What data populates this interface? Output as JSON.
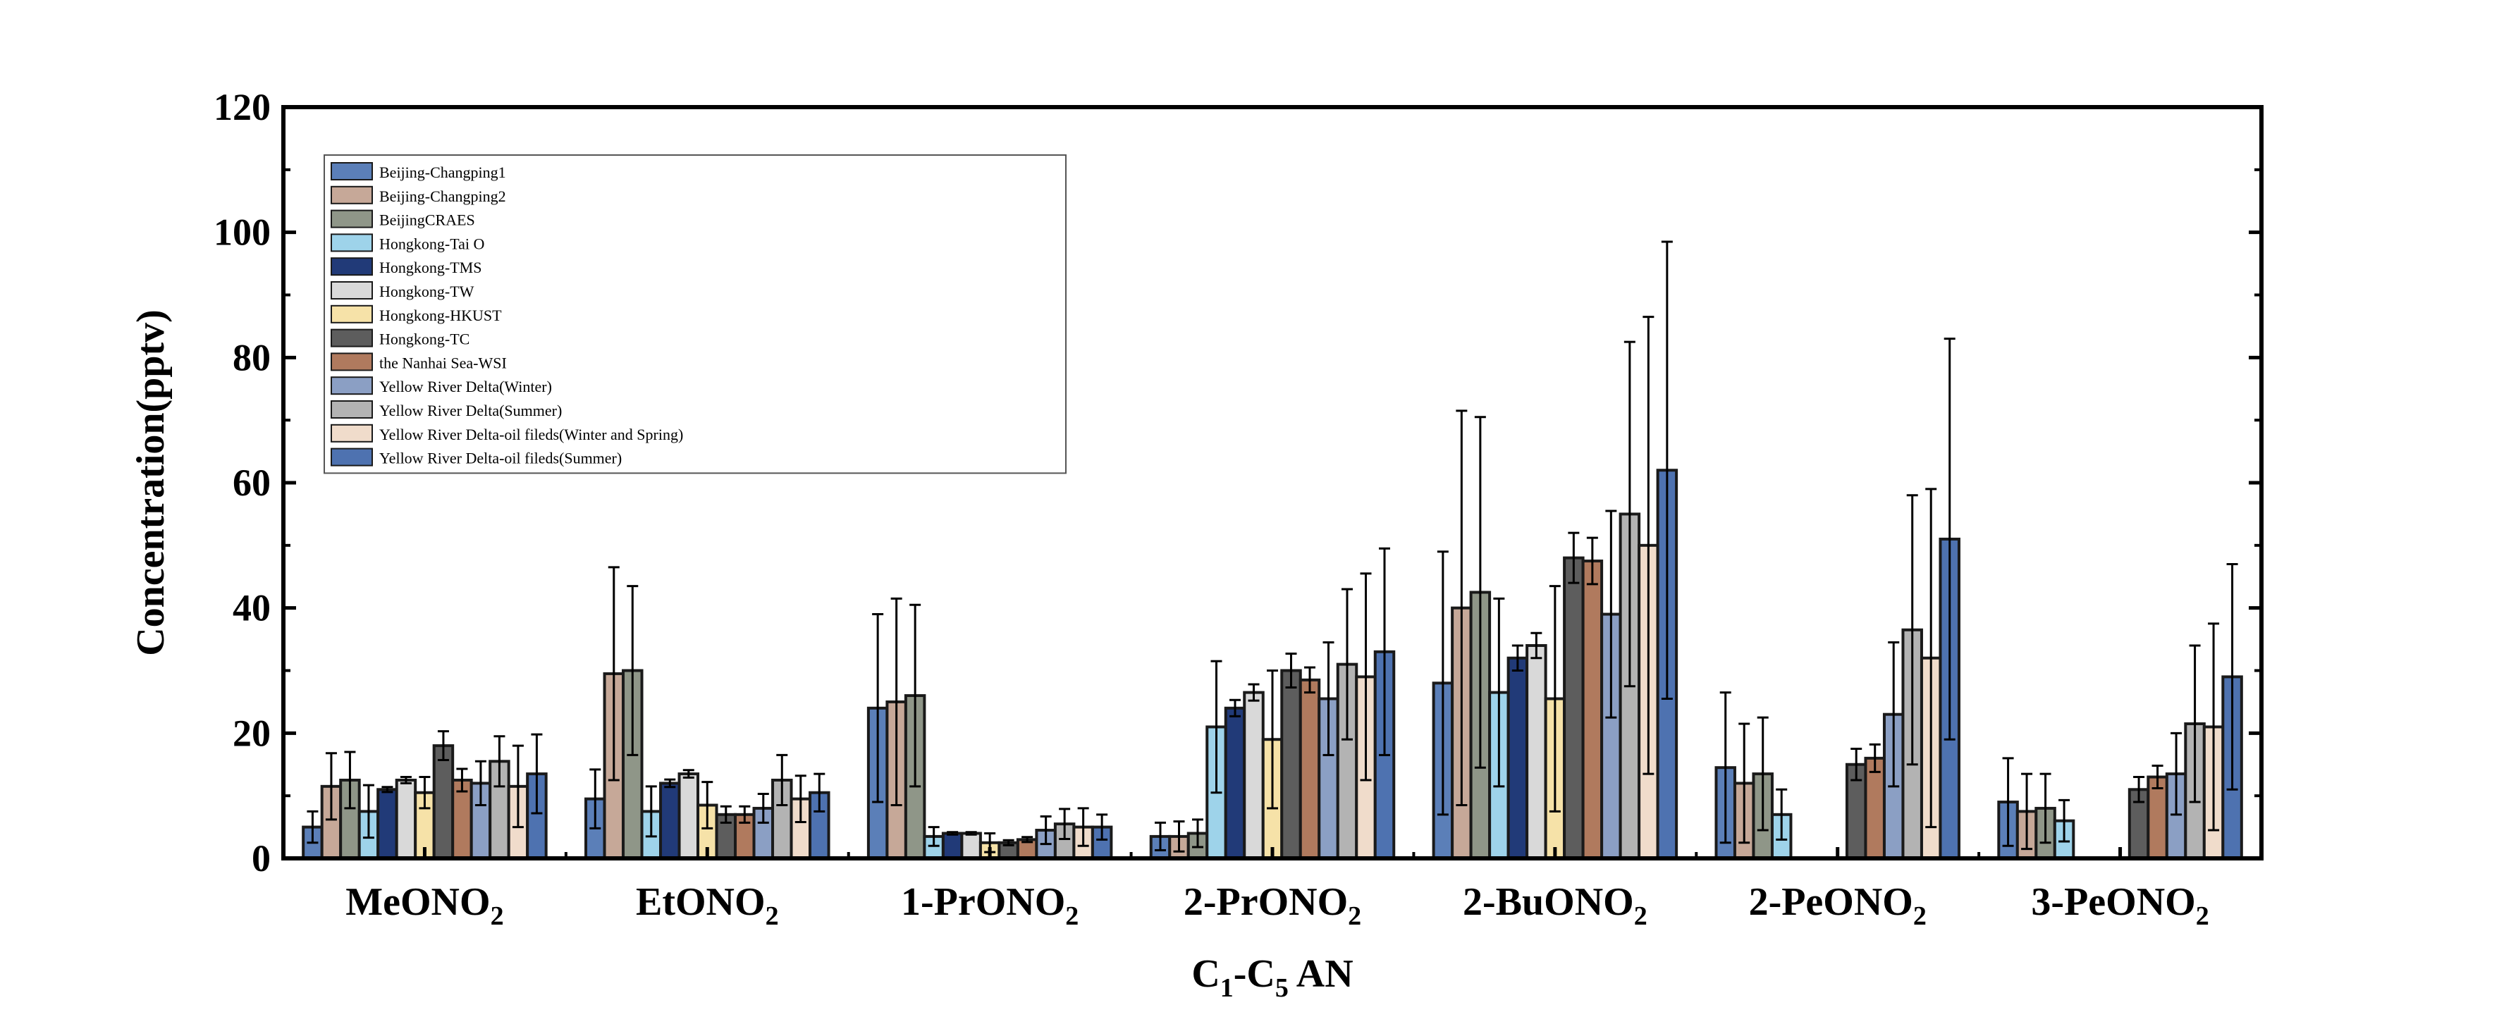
{
  "chart_data": {
    "type": "bar",
    "title": "",
    "ylabel": "Concentration(pptv)",
    "xlabel": {
      "prefix": "C",
      "sub1": "1",
      "mid": "-C",
      "sub2": "5",
      "suffix": " AN"
    },
    "ylim": [
      0,
      120
    ],
    "yticks": [
      0,
      20,
      40,
      60,
      80,
      100,
      120
    ],
    "legend_position": "top-left",
    "categories": [
      {
        "pre": "MeONO",
        "sub": "2"
      },
      {
        "pre": "EtONO",
        "sub": "2"
      },
      {
        "pre": "1-PrONO",
        "sub": "2"
      },
      {
        "pre": "2-PrONO",
        "sub": "2"
      },
      {
        "pre": "2-BuONO",
        "sub": "2"
      },
      {
        "pre": "2-PeONO",
        "sub": "2"
      },
      {
        "pre": "3-PeONO",
        "sub": "2"
      }
    ],
    "series": [
      {
        "name": "Beijing-Changping1",
        "color": "#5b7fb8",
        "values": [
          5,
          9.5,
          24,
          3.5,
          28,
          14.5,
          9
        ],
        "errors": [
          2.5,
          4.7,
          15,
          2.2,
          21,
          12,
          7
        ]
      },
      {
        "name": "Beijing-Changping2",
        "color": "#c6a898",
        "values": [
          11.5,
          29.5,
          25,
          3.5,
          40,
          12,
          7.5
        ],
        "errors": [
          5.3,
          17,
          16.5,
          2.4,
          31.5,
          9.5,
          6
        ]
      },
      {
        "name": "BeijingCRAES",
        "color": "#8f9688",
        "values": [
          12.5,
          30,
          26,
          4,
          42.5,
          13.5,
          8
        ],
        "errors": [
          4.5,
          13.5,
          14.5,
          2.2,
          28,
          9,
          5.5
        ]
      },
      {
        "name": "Hongkong-Tai O",
        "color": "#9ed3ea",
        "values": [
          7.5,
          7.5,
          3.5,
          21,
          26.5,
          7,
          6
        ],
        "errors": [
          4.2,
          4,
          1.5,
          10.5,
          15,
          4,
          3.3
        ]
      },
      {
        "name": "Hongkong-TMS",
        "color": "#213a78",
        "values": [
          11,
          12,
          4,
          24,
          32,
          null,
          null
        ],
        "errors": [
          0.4,
          0.6,
          0.2,
          1.3,
          2,
          null,
          null
        ]
      },
      {
        "name": "Hongkong-TW",
        "color": "#d9d9d9",
        "values": [
          12.5,
          13.5,
          4,
          26.5,
          34,
          null,
          null
        ],
        "errors": [
          0.5,
          0.6,
          0.2,
          1.3,
          2,
          null,
          null
        ]
      },
      {
        "name": "Hongkong-HKUST",
        "color": "#f6e2a8",
        "values": [
          10.5,
          8.5,
          2.5,
          19,
          25.5,
          null,
          null
        ],
        "errors": [
          2.5,
          3.7,
          1.5,
          11,
          18,
          null,
          null
        ]
      },
      {
        "name": "Hongkong-TC",
        "color": "#5d5d5d",
        "values": [
          18,
          7,
          2.5,
          30,
          48,
          15,
          11
        ],
        "errors": [
          2.3,
          1.3,
          0.4,
          2.7,
          4,
          2.5,
          2
        ]
      },
      {
        "name": "the Nanhai Sea-WSI",
        "color": "#b07a5e",
        "values": [
          12.5,
          7,
          3,
          28.5,
          47.5,
          16,
          13
        ],
        "errors": [
          1.8,
          1.3,
          0.4,
          2,
          3.7,
          2.2,
          1.8
        ]
      },
      {
        "name": "Yellow River Delta(Winter)",
        "color": "#8b9fc4",
        "values": [
          12,
          8,
          4.5,
          25.5,
          39,
          23,
          13.5
        ],
        "errors": [
          3.5,
          2.3,
          2.2,
          9,
          16.5,
          11.5,
          6.5
        ]
      },
      {
        "name": "Yellow River Delta(Summer)",
        "color": "#b3b3b3",
        "values": [
          15.5,
          12.5,
          5.5,
          31,
          55,
          36.5,
          21.5
        ],
        "errors": [
          4,
          4,
          2.4,
          12,
          27.5,
          21.5,
          12.5
        ]
      },
      {
        "name": "Yellow River Delta-oil fileds(Winter and Spring)",
        "color": "#f0dccb",
        "values": [
          11.5,
          9.5,
          5,
          29,
          50,
          32,
          21
        ],
        "errors": [
          6.5,
          3.7,
          3,
          16.5,
          36.5,
          27,
          16.5
        ]
      },
      {
        "name": "Yellow River Delta-oil fileds(Summer)",
        "color": "#4e72b0",
        "values": [
          13.5,
          10.5,
          5,
          33,
          62,
          51,
          29
        ],
        "errors": [
          6.3,
          3,
          2,
          16.5,
          36.5,
          32,
          18
        ]
      }
    ]
  }
}
